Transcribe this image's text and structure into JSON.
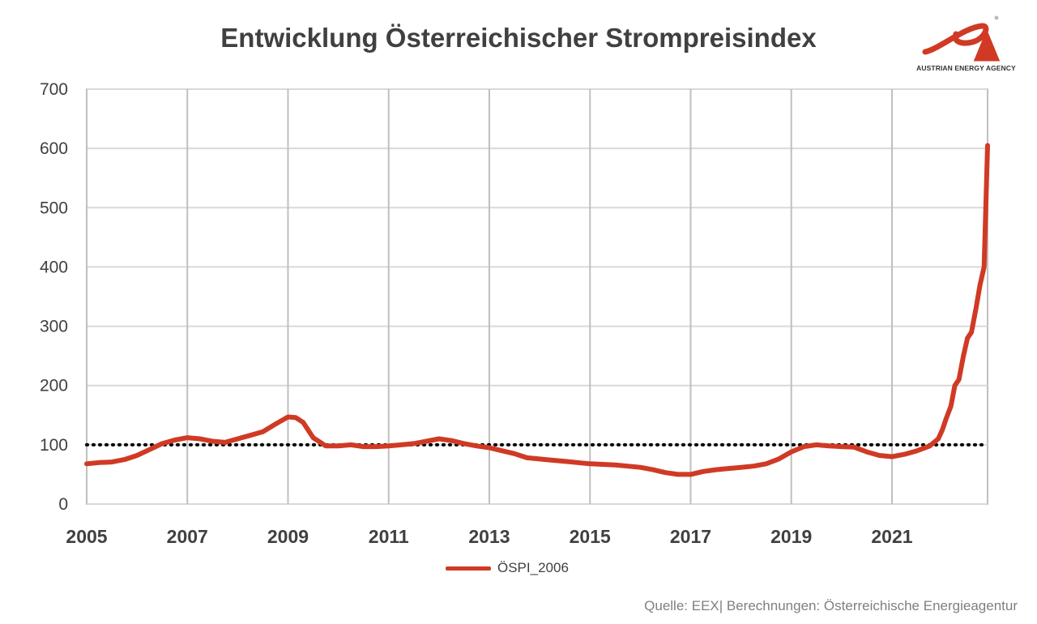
{
  "logo": {
    "text": "AUSTRIAN ENERGY AGENCY",
    "icon": "energy-agency-logo",
    "color": "#d03a24"
  },
  "source": "Quelle: EEX| Berechnungen: Österreichische Energieagentur",
  "chart_data": {
    "type": "line",
    "title": "Entwicklung Österreichischer Strompreisindex",
    "xlabel": "",
    "ylabel": "",
    "xlim": [
      2005.0,
      2022.9
    ],
    "ylim": [
      0,
      700
    ],
    "yticks": [
      0,
      100,
      200,
      300,
      400,
      500,
      600,
      700
    ],
    "xticks": [
      2005,
      2007,
      2009,
      2011,
      2013,
      2015,
      2017,
      2019,
      2021
    ],
    "grid": true,
    "legend": "bottom-center",
    "reference_line": {
      "value": 100,
      "style": "dotted",
      "color": "#000000"
    },
    "series": [
      {
        "name": "ÖSPI_2006",
        "color": "#d03a24",
        "x": [
          2005.0,
          2005.25,
          2005.5,
          2005.75,
          2006.0,
          2006.25,
          2006.5,
          2006.75,
          2007.0,
          2007.25,
          2007.5,
          2007.75,
          2008.0,
          2008.25,
          2008.5,
          2008.75,
          2009.0,
          2009.15,
          2009.3,
          2009.5,
          2009.75,
          2010.0,
          2010.25,
          2010.5,
          2010.75,
          2011.0,
          2011.25,
          2011.5,
          2011.75,
          2012.0,
          2012.25,
          2012.5,
          2012.75,
          2013.0,
          2013.25,
          2013.5,
          2013.75,
          2014.0,
          2014.25,
          2014.5,
          2014.75,
          2015.0,
          2015.25,
          2015.5,
          2015.75,
          2016.0,
          2016.25,
          2016.5,
          2016.75,
          2017.0,
          2017.25,
          2017.5,
          2017.75,
          2018.0,
          2018.25,
          2018.5,
          2018.75,
          2019.0,
          2019.25,
          2019.5,
          2019.75,
          2020.0,
          2020.25,
          2020.5,
          2020.75,
          2021.0,
          2021.25,
          2021.5,
          2021.75,
          2021.92,
          2022.0,
          2022.08,
          2022.17,
          2022.25,
          2022.33,
          2022.42,
          2022.5,
          2022.58,
          2022.67,
          2022.75,
          2022.83,
          2022.9
        ],
        "values": [
          68,
          70,
          71,
          75,
          82,
          92,
          102,
          108,
          112,
          110,
          106,
          104,
          110,
          116,
          122,
          135,
          147,
          146,
          138,
          112,
          98,
          98,
          100,
          97,
          97,
          98,
          100,
          102,
          106,
          110,
          107,
          102,
          98,
          95,
          90,
          85,
          78,
          76,
          74,
          72,
          70,
          68,
          67,
          66,
          64,
          62,
          58,
          53,
          50,
          50,
          55,
          58,
          60,
          62,
          64,
          68,
          76,
          88,
          97,
          100,
          98,
          97,
          96,
          88,
          82,
          80,
          84,
          90,
          98,
          110,
          125,
          145,
          165,
          200,
          210,
          250,
          280,
          290,
          330,
          370,
          400,
          605
        ]
      }
    ]
  }
}
